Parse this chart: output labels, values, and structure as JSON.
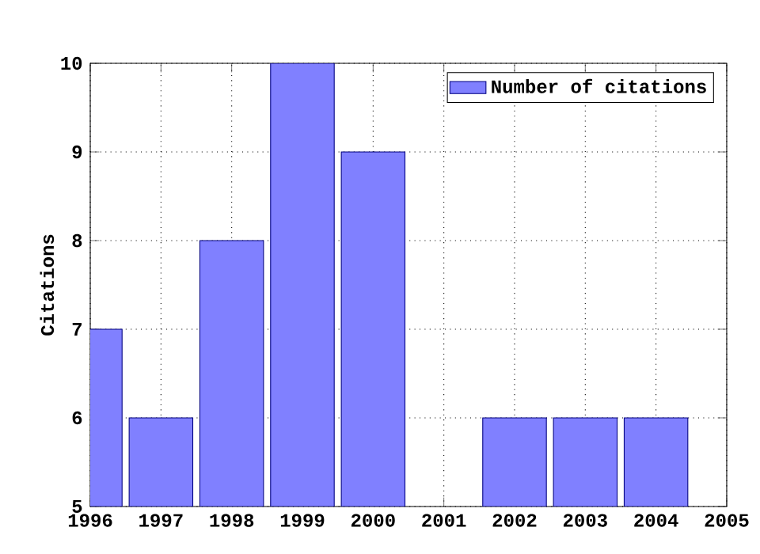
{
  "chart_data": {
    "type": "bar",
    "ylabel": "Citations",
    "x": [
      1996,
      1997,
      1998,
      1999,
      2000,
      2001,
      2002,
      2003,
      2004
    ],
    "series": [
      {
        "name": "Number of citations",
        "color": "#8080ff",
        "values": [
          7,
          6,
          8,
          10,
          9,
          null,
          6,
          6,
          6
        ]
      }
    ],
    "xlim": [
      1996,
      2005
    ],
    "ylim": [
      5,
      10
    ],
    "xticks": [
      1996,
      1997,
      1998,
      1999,
      2000,
      2001,
      2002,
      2003,
      2004,
      2005
    ],
    "yticks": [
      5,
      6,
      7,
      8,
      9,
      10
    ],
    "grid": true,
    "legend": "top right"
  }
}
